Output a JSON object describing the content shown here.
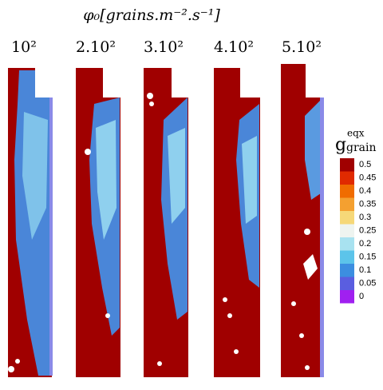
{
  "header": {
    "title": "φ₀[grains.m⁻².s⁻¹]"
  },
  "panels": [
    {
      "label": "10²"
    },
    {
      "label": "2.10²"
    },
    {
      "label": "3.10²"
    },
    {
      "label": "4.10²"
    },
    {
      "label": "5.10²"
    }
  ],
  "colorbar": {
    "label": "g",
    "label_sup": "eqx",
    "label_sub": "grain",
    "ticks": [
      0.5,
      0.45,
      0.4,
      0.35,
      0.3,
      0.25,
      0.2,
      0.15,
      0.1,
      0.05,
      0
    ],
    "colors": [
      "#a00000",
      "#e02a00",
      "#f06c00",
      "#f4a030",
      "#f6d878",
      "#eef4f0",
      "#a8e2f0",
      "#5cc4ea",
      "#3c8ee0",
      "#5a5ee0",
      "#a020f0"
    ]
  }
}
